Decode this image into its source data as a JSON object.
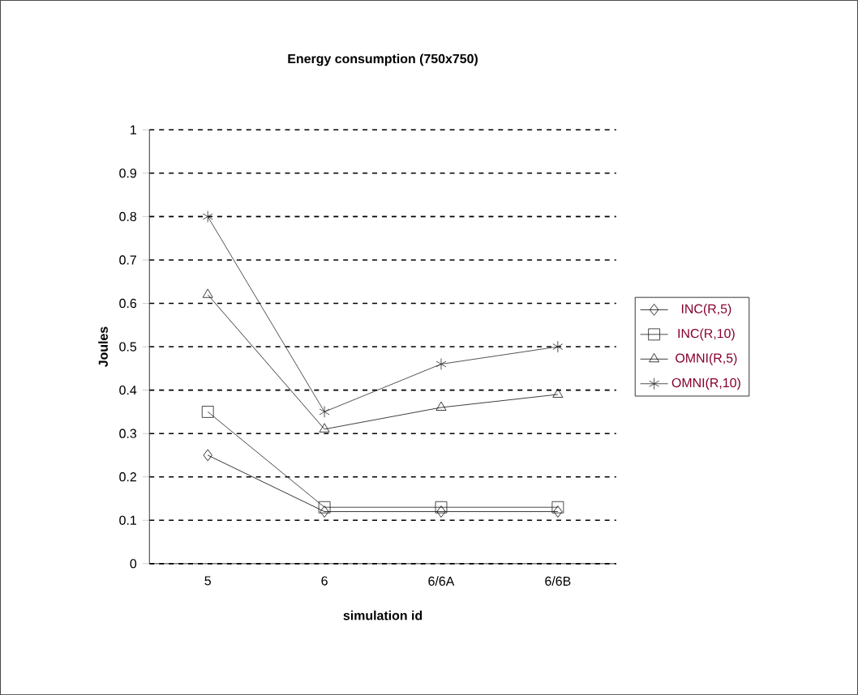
{
  "chart_data": {
    "type": "line",
    "title": "Energy consumption (750x750)",
    "xlabel": "simulation id",
    "ylabel": "Joules",
    "categories": [
      "5",
      "6",
      "6/6A",
      "6/6B"
    ],
    "series": [
      {
        "name": "INC(R,5)",
        "color": "#000000",
        "marker": "diamond",
        "values": [
          0.25,
          0.12,
          0.12,
          0.12
        ]
      },
      {
        "name": "INC(R,10)",
        "color": "#1a1a1a",
        "marker": "square",
        "values": [
          0.35,
          0.13,
          0.13,
          0.13
        ]
      },
      {
        "name": "OMNI(R,5)",
        "color": "#0d0d0d",
        "marker": "triangle",
        "values": [
          0.62,
          0.31,
          0.36,
          0.39
        ]
      },
      {
        "name": "OMNI(R,10)",
        "color": "#262626",
        "marker": "cross",
        "values": [
          0.8,
          0.35,
          0.46,
          0.5
        ]
      }
    ],
    "ylim": [
      0,
      1
    ],
    "yticks": [
      0,
      0.1,
      0.2,
      0.3,
      0.4,
      0.5,
      0.6,
      0.7,
      0.8,
      0.9,
      1
    ],
    "grid": "y",
    "legend": "right"
  }
}
